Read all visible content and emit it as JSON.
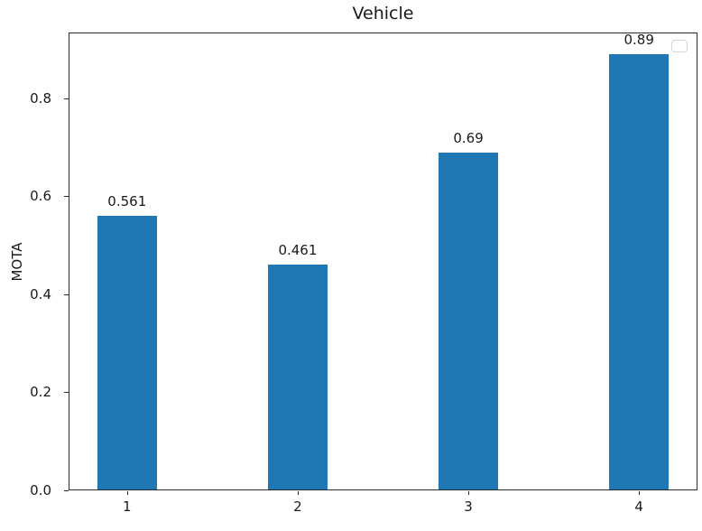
{
  "chart_data": {
    "type": "bar",
    "title": "Vehicle",
    "xlabel": "",
    "ylabel": "MOTA",
    "categories": [
      "1",
      "2",
      "3",
      "4"
    ],
    "x": [
      1,
      2,
      3,
      4
    ],
    "values": [
      0.561,
      0.461,
      0.69,
      0.89
    ],
    "bar_labels": [
      "0.561",
      "0.461",
      "0.69",
      "0.89"
    ],
    "bar_color": "#1f77b4",
    "bar_width": 0.35,
    "yticks": [
      0.0,
      0.2,
      0.4,
      0.6,
      0.8
    ],
    "ytick_labels": [
      "0.0",
      "0.2",
      "0.4",
      "0.6",
      "0.8"
    ],
    "ylim": [
      0,
      0.9345
    ],
    "xlim": [
      0.6575,
      4.3425
    ],
    "grid": false,
    "legend": {
      "visible": true,
      "position": "upper-right",
      "entries": []
    }
  }
}
